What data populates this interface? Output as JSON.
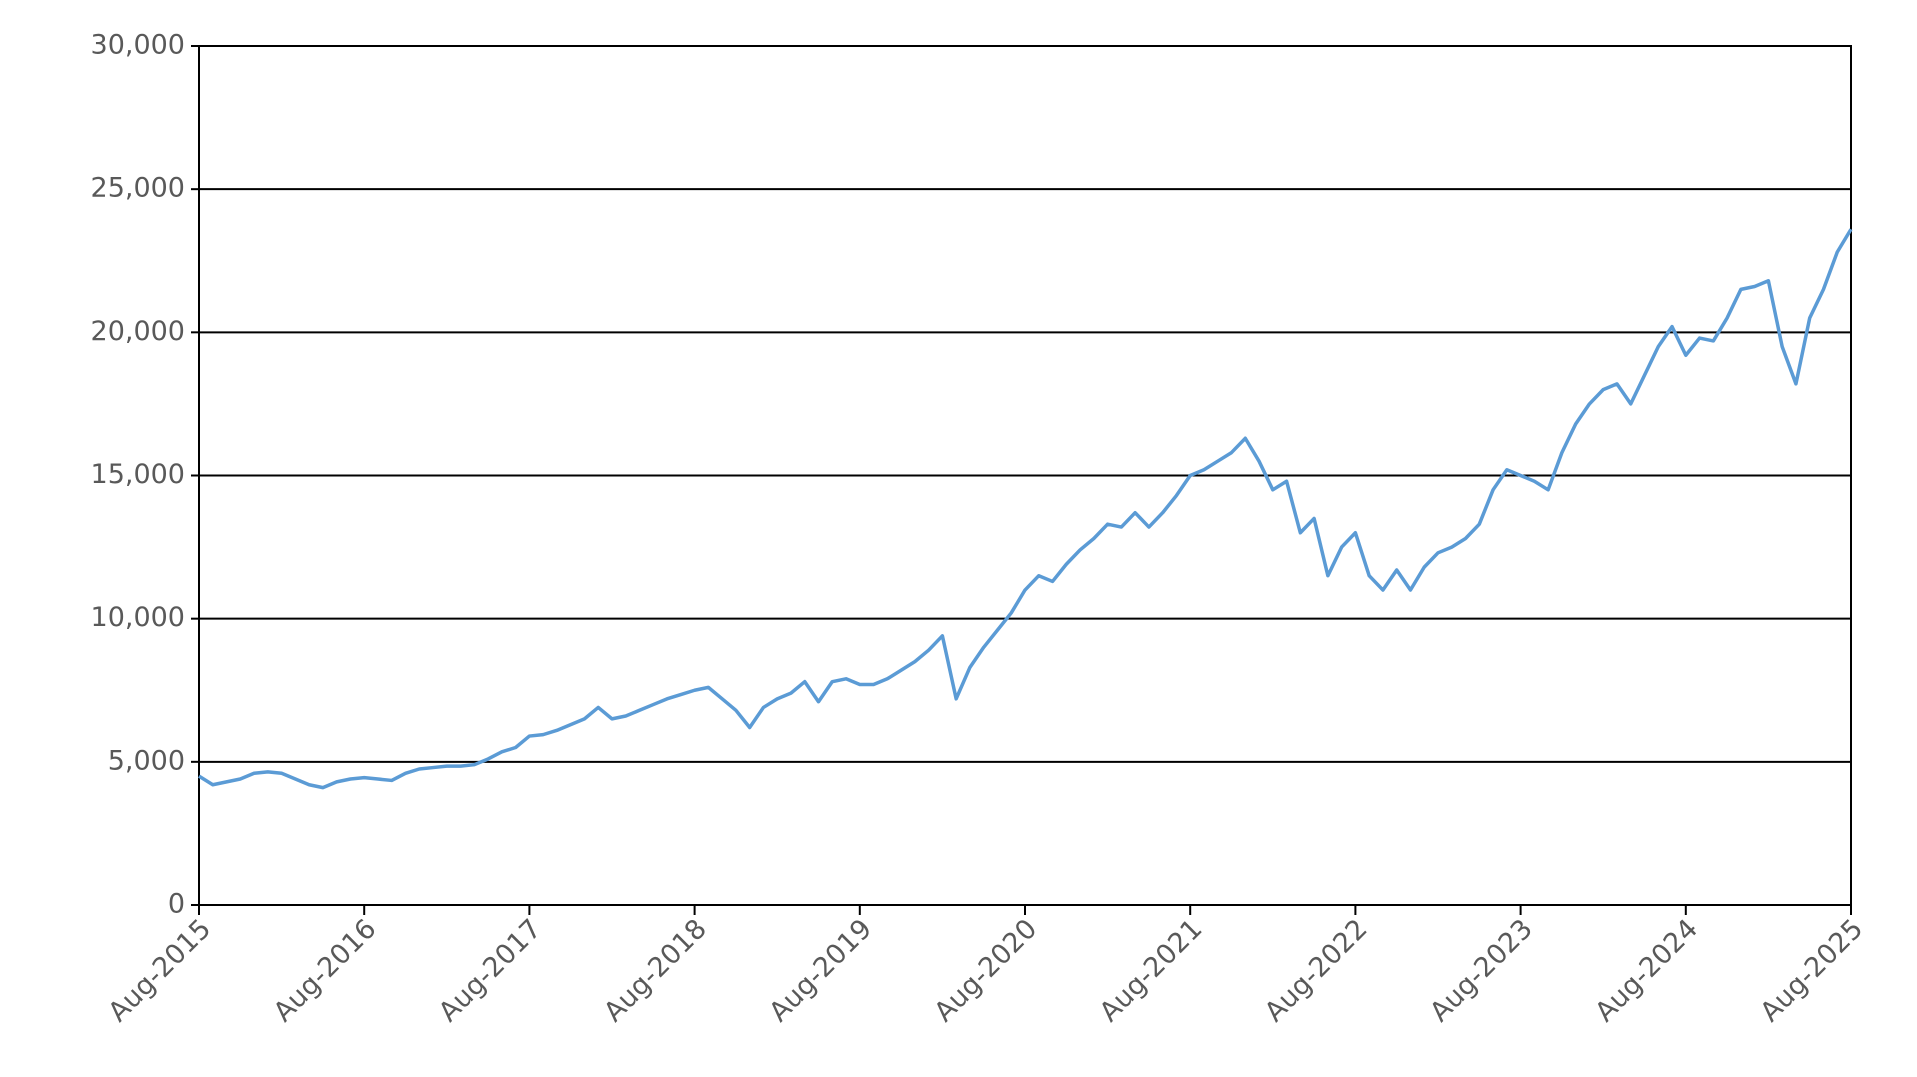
{
  "chart_data": {
    "type": "line",
    "color": "#5b9bd5",
    "grid": true,
    "x": [
      "Aug-2015",
      "Sep-2015",
      "Oct-2015",
      "Nov-2015",
      "Dec-2015",
      "Jan-2016",
      "Feb-2016",
      "Mar-2016",
      "Apr-2016",
      "May-2016",
      "Jun-2016",
      "Jul-2016",
      "Aug-2016",
      "Sep-2016",
      "Oct-2016",
      "Nov-2016",
      "Dec-2016",
      "Jan-2017",
      "Feb-2017",
      "Mar-2017",
      "Apr-2017",
      "May-2017",
      "Jun-2017",
      "Jul-2017",
      "Aug-2017",
      "Sep-2017",
      "Oct-2017",
      "Nov-2017",
      "Dec-2017",
      "Jan-2018",
      "Feb-2018",
      "Mar-2018",
      "Apr-2018",
      "May-2018",
      "Jun-2018",
      "Jul-2018",
      "Aug-2018",
      "Sep-2018",
      "Oct-2018",
      "Nov-2018",
      "Dec-2018",
      "Jan-2019",
      "Feb-2019",
      "Mar-2019",
      "Apr-2019",
      "May-2019",
      "Jun-2019",
      "Jul-2019",
      "Aug-2019",
      "Sep-2019",
      "Oct-2019",
      "Nov-2019",
      "Dec-2019",
      "Jan-2020",
      "Feb-2020",
      "Mar-2020",
      "Apr-2020",
      "May-2020",
      "Jun-2020",
      "Jul-2020",
      "Aug-2020",
      "Sep-2020",
      "Oct-2020",
      "Nov-2020",
      "Dec-2020",
      "Jan-2021",
      "Feb-2021",
      "Mar-2021",
      "Apr-2021",
      "May-2021",
      "Jun-2021",
      "Jul-2021",
      "Aug-2021",
      "Sep-2021",
      "Oct-2021",
      "Nov-2021",
      "Dec-2021",
      "Jan-2022",
      "Feb-2022",
      "Mar-2022",
      "Apr-2022",
      "May-2022",
      "Jun-2022",
      "Jul-2022",
      "Aug-2022",
      "Sep-2022",
      "Oct-2022",
      "Nov-2022",
      "Dec-2022",
      "Jan-2023",
      "Feb-2023",
      "Mar-2023",
      "Apr-2023",
      "May-2023",
      "Jun-2023",
      "Jul-2023",
      "Aug-2023",
      "Sep-2023",
      "Oct-2023",
      "Nov-2023",
      "Dec-2023",
      "Jan-2024",
      "Feb-2024",
      "Mar-2024",
      "Apr-2024",
      "May-2024",
      "Jun-2024",
      "Jul-2024",
      "Aug-2024",
      "Sep-2024",
      "Oct-2024",
      "Nov-2024",
      "Dec-2024",
      "Jan-2025",
      "Feb-2025",
      "Mar-2025",
      "Apr-2025",
      "May-2025",
      "Jun-2025",
      "Jul-2025",
      "Aug-2025"
    ],
    "values": [
      4500,
      4200,
      4300,
      4400,
      4600,
      4650,
      4600,
      4400,
      4200,
      4100,
      4300,
      4400,
      4450,
      4400,
      4350,
      4600,
      4750,
      4800,
      4850,
      4850,
      4900,
      5100,
      5350,
      5500,
      5900,
      5950,
      6100,
      6300,
      6500,
      6900,
      6500,
      6600,
      6800,
      7000,
      7200,
      7350,
      7500,
      7600,
      7200,
      6800,
      6200,
      6900,
      7200,
      7400,
      7800,
      7100,
      7800,
      7900,
      7700,
      7700,
      7900,
      8200,
      8500,
      8900,
      9400,
      7200,
      8300,
      9000,
      9600,
      10200,
      11000,
      11500,
      11300,
      11900,
      12400,
      12800,
      13300,
      13200,
      13700,
      13200,
      13700,
      14300,
      15000,
      15200,
      15500,
      15800,
      16300,
      15500,
      14500,
      14800,
      13000,
      13500,
      11500,
      12500,
      13000,
      11500,
      11000,
      11700,
      11000,
      11800,
      12300,
      12500,
      12800,
      13300,
      14500,
      15200,
      15000,
      14800,
      14500,
      15800,
      16800,
      17500,
      18000,
      18200,
      17500,
      18500,
      19500,
      20200,
      19200,
      19800,
      19700,
      20500,
      21500,
      21600,
      21800,
      19500,
      18200,
      20500,
      21500,
      22800,
      23600
    ],
    "xticks": [
      "Aug-2015",
      "Aug-2016",
      "Aug-2017",
      "Aug-2018",
      "Aug-2019",
      "Aug-2020",
      "Aug-2021",
      "Aug-2022",
      "Aug-2023",
      "Aug-2024",
      "Aug-2025"
    ],
    "ylim": [
      0,
      30000
    ],
    "yticks": [
      0,
      {
        "value": 5000,
        "label": "5,000"
      },
      {
        "value": 10000,
        "label": "10,000"
      },
      {
        "value": 15000,
        "label": "15,000"
      },
      {
        "value": 20000,
        "label": "20,000"
      },
      {
        "value": 25000,
        "label": "25,000"
      },
      {
        "value": 30000,
        "label": "30,000"
      }
    ]
  }
}
